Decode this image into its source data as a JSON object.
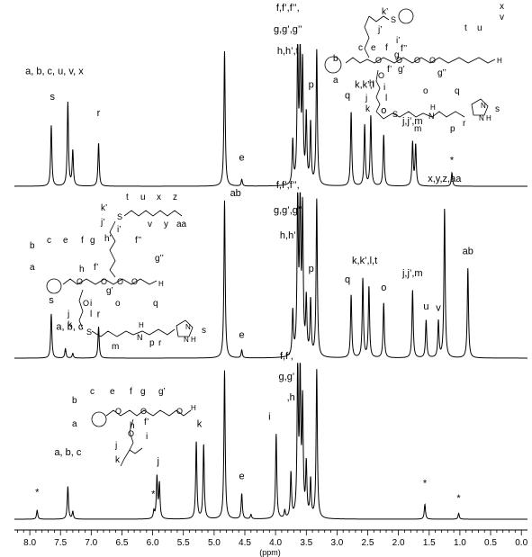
{
  "chart_data": {
    "type": "line",
    "xlabel": "(ppm)",
    "x_reversed": true,
    "xlim": [
      8.25,
      -0.1
    ],
    "xticks": [
      8.0,
      7.5,
      7.0,
      6.5,
      6.0,
      5.5,
      5.0,
      4.5,
      4.0,
      3.5,
      3.0,
      2.5,
      2.0,
      1.5,
      1.0,
      0.5,
      0.0
    ],
    "xtick_labels": [
      "8.0",
      "7.5",
      "7.0",
      "6.5",
      "6.0",
      "5.5",
      "5.0",
      "4.5",
      "4.0",
      "3.5",
      "3.0",
      "2.5",
      "2.0",
      "1.5",
      "1.0",
      "0.5",
      "0.0"
    ],
    "stack_order": "top-to-bottom",
    "panels": [
      {
        "peaks": [
          {
            "ppm": 7.65,
            "height": 0.45
          },
          {
            "ppm": 7.38,
            "height": 0.62
          },
          {
            "ppm": 7.3,
            "height": 0.26
          },
          {
            "ppm": 6.88,
            "height": 0.32
          },
          {
            "ppm": 4.83,
            "height": 1.0
          },
          {
            "ppm": 4.55,
            "height": 0.05
          },
          {
            "ppm": 3.72,
            "height": 0.32
          },
          {
            "ppm": 3.64,
            "height": 1.0
          },
          {
            "ppm": 3.6,
            "height": 1.0
          },
          {
            "ppm": 3.56,
            "height": 0.85
          },
          {
            "ppm": 3.5,
            "height": 0.5
          },
          {
            "ppm": 3.43,
            "height": 0.45
          },
          {
            "ppm": 3.33,
            "height": 1.0
          },
          {
            "ppm": 2.77,
            "height": 0.55
          },
          {
            "ppm": 2.55,
            "height": 0.45
          },
          {
            "ppm": 2.45,
            "height": 0.52
          },
          {
            "ppm": 2.24,
            "height": 0.38
          },
          {
            "ppm": 1.77,
            "height": 0.32
          },
          {
            "ppm": 1.72,
            "height": 0.3
          },
          {
            "ppm": 1.13,
            "height": 0.1
          }
        ],
        "labels": [
          {
            "text": "a, b, c, u, v, x",
            "ppm": 7.6,
            "level": 0.83
          },
          {
            "text": "s",
            "ppm": 7.63,
            "level": 0.64
          },
          {
            "text": "r",
            "ppm": 6.88,
            "level": 0.52
          },
          {
            "text": "e",
            "ppm": 4.55,
            "level": 0.19
          },
          {
            "text": "f,f’,f’’,",
            "ppm": 3.8,
            "level": 1.3
          },
          {
            "text": "g,g’,g’’",
            "ppm": 3.8,
            "level": 1.14
          },
          {
            "text": "h,h’,t",
            "ppm": 3.8,
            "level": 0.98
          },
          {
            "text": "p",
            "ppm": 3.42,
            "level": 0.73
          },
          {
            "text": "q",
            "ppm": 2.83,
            "level": 0.65
          },
          {
            "text": "k,k’,l",
            "ppm": 2.55,
            "level": 0.73
          },
          {
            "text": "o",
            "ppm": 2.24,
            "level": 0.54
          },
          {
            "text": "j,j’,m",
            "ppm": 1.77,
            "level": 0.46
          },
          {
            "text": "*",
            "ppm": 1.13,
            "level": 0.17
          }
        ]
      },
      {
        "peaks": [
          {
            "ppm": 7.65,
            "height": 0.28
          },
          {
            "ppm": 7.42,
            "height": 0.06
          },
          {
            "ppm": 7.3,
            "height": 0.03
          },
          {
            "ppm": 6.88,
            "height": 0.2
          },
          {
            "ppm": 4.83,
            "height": 1.0
          },
          {
            "ppm": 4.55,
            "height": 0.05
          },
          {
            "ppm": 3.72,
            "height": 0.28
          },
          {
            "ppm": 3.64,
            "height": 1.0
          },
          {
            "ppm": 3.6,
            "height": 1.0
          },
          {
            "ppm": 3.56,
            "height": 0.9
          },
          {
            "ppm": 3.5,
            "height": 0.35
          },
          {
            "ppm": 3.43,
            "height": 0.35
          },
          {
            "ppm": 3.33,
            "height": 1.0
          },
          {
            "ppm": 2.77,
            "height": 0.4
          },
          {
            "ppm": 2.58,
            "height": 0.5
          },
          {
            "ppm": 2.48,
            "height": 0.45
          },
          {
            "ppm": 2.24,
            "height": 0.35
          },
          {
            "ppm": 1.77,
            "height": 0.43
          },
          {
            "ppm": 1.55,
            "height": 0.24
          },
          {
            "ppm": 1.35,
            "height": 0.23
          },
          {
            "ppm": 1.25,
            "height": 0.95
          },
          {
            "ppm": 0.87,
            "height": 0.57
          }
        ],
        "labels": [
          {
            "text": "ab",
            "ppm": 4.65,
            "level": 1.03
          },
          {
            "text": "f,f’,f’’,",
            "ppm": 3.8,
            "level": 1.08
          },
          {
            "text": "g,g’,g’’",
            "ppm": 3.8,
            "level": 0.92
          },
          {
            "text": "h,h’",
            "ppm": 3.8,
            "level": 0.76
          },
          {
            "text": "p",
            "ppm": 3.42,
            "level": 0.55
          },
          {
            "text": "q",
            "ppm": 2.83,
            "level": 0.48
          },
          {
            "text": "k,k’,l,t",
            "ppm": 2.55,
            "level": 0.6
          },
          {
            "text": "o",
            "ppm": 2.24,
            "level": 0.43
          },
          {
            "text": "j,j’,m",
            "ppm": 1.77,
            "level": 0.52
          },
          {
            "text": "x,y,z,aa",
            "ppm": 1.25,
            "level": 1.12
          },
          {
            "text": "ab",
            "ppm": 0.87,
            "level": 0.66
          },
          {
            "text": "u",
            "ppm": 1.55,
            "level": 0.31
          },
          {
            "text": "v",
            "ppm": 1.35,
            "level": 0.3
          },
          {
            "text": "s",
            "ppm": 7.65,
            "level": 0.35
          },
          {
            "text": "a, b, c",
            "ppm": 7.35,
            "level": 0.18
          },
          {
            "text": "r",
            "ppm": 6.88,
            "level": 0.26
          },
          {
            "text": "e",
            "ppm": 4.55,
            "level": 0.13
          }
        ]
      },
      {
        "peaks": [
          {
            "ppm": 7.88,
            "height": 0.06
          },
          {
            "ppm": 7.38,
            "height": 0.22
          },
          {
            "ppm": 7.3,
            "height": 0.05
          },
          {
            "ppm": 5.98,
            "height": 0.05
          },
          {
            "ppm": 5.93,
            "height": 0.28
          },
          {
            "ppm": 5.89,
            "height": 0.23
          },
          {
            "ppm": 5.29,
            "height": 0.52
          },
          {
            "ppm": 5.17,
            "height": 0.5
          },
          {
            "ppm": 4.83,
            "height": 1.0
          },
          {
            "ppm": 4.55,
            "height": 0.17
          },
          {
            "ppm": 4.4,
            "height": 0.03
          },
          {
            "ppm": 3.99,
            "height": 0.57
          },
          {
            "ppm": 3.85,
            "height": 0.05
          },
          {
            "ppm": 3.75,
            "height": 0.3
          },
          {
            "ppm": 3.64,
            "height": 1.0
          },
          {
            "ppm": 3.6,
            "height": 0.95
          },
          {
            "ppm": 3.56,
            "height": 0.75
          },
          {
            "ppm": 3.5,
            "height": 0.35
          },
          {
            "ppm": 3.43,
            "height": 0.25
          },
          {
            "ppm": 3.33,
            "height": 1.0
          },
          {
            "ppm": 1.57,
            "height": 0.1
          },
          {
            "ppm": 1.02,
            "height": 0.04
          }
        ],
        "labels": [
          {
            "text": "*",
            "ppm": 7.88,
            "level": 0.16
          },
          {
            "text": "a, b, c",
            "ppm": 7.38,
            "level": 0.43
          },
          {
            "text": "*",
            "ppm": 5.99,
            "level": 0.15
          },
          {
            "text": "j",
            "ppm": 5.91,
            "level": 0.37
          },
          {
            "text": "k",
            "ppm": 5.24,
            "level": 0.62
          },
          {
            "text": "e",
            "ppm": 4.55,
            "level": 0.27
          },
          {
            "text": "i",
            "ppm": 4.1,
            "level": 0.67
          },
          {
            "text": "f,f’,",
            "ppm": 3.82,
            "level": 1.08
          },
          {
            "text": "g,g’",
            "ppm": 3.82,
            "level": 0.94
          },
          {
            "text": ",h",
            "ppm": 3.75,
            "level": 0.8
          },
          {
            "text": "*",
            "ppm": 1.57,
            "level": 0.22
          },
          {
            "text": "*",
            "ppm": 1.02,
            "level": 0.12
          }
        ]
      }
    ]
  },
  "structures": {
    "top": {
      "labels": [
        "k’",
        "j’",
        "i’",
        "f’’",
        "g’’",
        "x",
        "v",
        "u",
        "t",
        "b",
        "c",
        "e",
        "f",
        "g",
        "a",
        "h",
        "f’",
        "g’",
        "i",
        "l",
        "o",
        "q",
        "j",
        "k",
        "m",
        "p",
        "r",
        "s"
      ],
      "atoms": [
        "S",
        "O",
        "O",
        "O",
        "O",
        "H",
        "O",
        "S",
        "N",
        "H",
        "N",
        "N",
        "H"
      ]
    },
    "middle": {
      "labels": [
        "k’",
        "j’",
        "h’",
        "i’",
        "f’’",
        "g’’",
        "t",
        "u",
        "x",
        "z",
        "v",
        "y",
        "aa",
        "b",
        "c",
        "e",
        "f",
        "g",
        "a",
        "h",
        "f’",
        "g’",
        "i",
        "l",
        "o",
        "q",
        "j",
        "k",
        "m",
        "p",
        "r",
        "s"
      ],
      "atoms": [
        "S",
        "O",
        "O",
        "O",
        "O",
        "H",
        "O",
        "S",
        "N",
        "H",
        "N",
        "N",
        "H"
      ]
    },
    "bottom": {
      "labels": [
        "b",
        "c",
        "e",
        "f",
        "g",
        "g’",
        "a",
        "h",
        "f’",
        "j",
        "i",
        "k"
      ],
      "atoms": [
        "O",
        "O",
        "O",
        "H",
        "O"
      ]
    }
  }
}
